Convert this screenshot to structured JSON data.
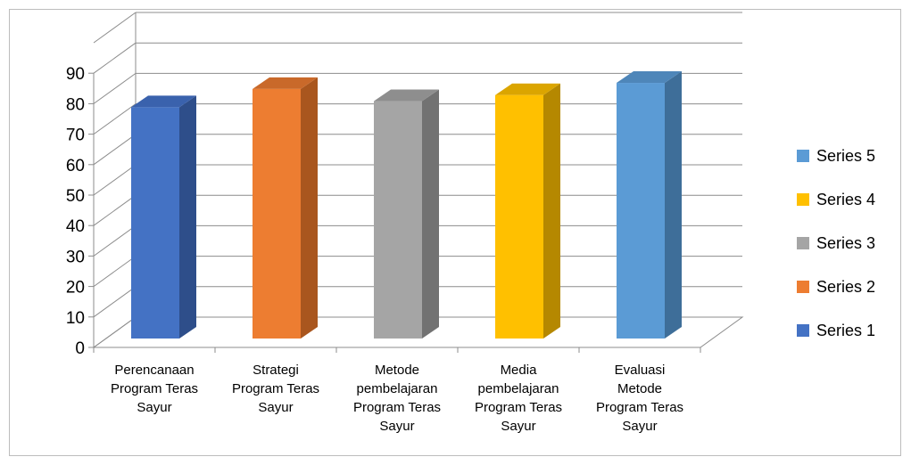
{
  "chart_data": {
    "type": "bar",
    "three_d": true,
    "categories": [
      [
        "Perencanaan",
        "Program Teras",
        "Sayur"
      ],
      [
        "Strategi",
        "Program Teras",
        "Sayur"
      ],
      [
        "Metode",
        "pembelajaran",
        "Program Teras",
        "Sayur"
      ],
      [
        "Media",
        "pembelajaran",
        "Program Teras",
        "Sayur"
      ],
      [
        "Evaluasi",
        "Metode",
        "Program Teras",
        "Sayur"
      ]
    ],
    "series": [
      {
        "name": "Series 1",
        "values": [
          80,
          null,
          null,
          null,
          null
        ],
        "color": "#4472C4",
        "side_color": "#2E4E8A",
        "top_color": "#3A62AD"
      },
      {
        "name": "Series 2",
        "values": [
          null,
          86,
          null,
          null,
          null
        ],
        "color": "#ED7D31",
        "side_color": "#A9561E",
        "top_color": "#C9692A"
      },
      {
        "name": "Series 3",
        "values": [
          null,
          null,
          82,
          null,
          null
        ],
        "color": "#A5A5A5",
        "side_color": "#727272",
        "top_color": "#8E8E8E"
      },
      {
        "name": "Series 4",
        "values": [
          null,
          null,
          null,
          84,
          null
        ],
        "color": "#FFC000",
        "side_color": "#B58800",
        "top_color": "#DBA500"
      },
      {
        "name": "Series 5",
        "values": [
          null,
          null,
          null,
          null,
          88
        ],
        "color": "#5B9BD5",
        "side_color": "#3E6E99",
        "top_color": "#4E86B9"
      }
    ],
    "yticks": [
      0,
      10,
      20,
      30,
      40,
      50,
      60,
      70,
      80,
      90
    ],
    "ylim": [
      0,
      100
    ],
    "grid": true,
    "legend_position": "right",
    "legend_order": [
      "Series 5",
      "Series 4",
      "Series 3",
      "Series 2",
      "Series 1"
    ],
    "title": "",
    "xlabel": "",
    "ylabel": ""
  }
}
